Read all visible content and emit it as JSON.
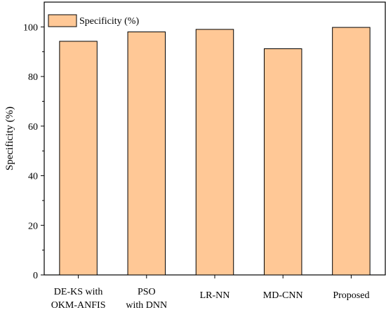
{
  "chart_data": {
    "type": "bar",
    "categories": [
      [
        "DE-KS with",
        "OKM-ANFIS"
      ],
      [
        "PSO",
        "with DNN"
      ],
      [
        "LR-NN"
      ],
      [
        "MD-CNN"
      ],
      [
        "Proposed"
      ]
    ],
    "series": [
      {
        "name": "Specificity (%)",
        "values": [
          94.2,
          98.0,
          99.0,
          91.2,
          99.8
        ]
      }
    ],
    "xlabel": "",
    "ylabel": "Specificity (%)",
    "ylim": [
      0,
      110
    ],
    "yticks": [
      0,
      20,
      40,
      60,
      80,
      100
    ],
    "grid": false,
    "legend_position": "top-left",
    "colors": {
      "bar_fill": "#FFC896",
      "bar_stroke": "#000000",
      "axis": "#000000"
    }
  }
}
